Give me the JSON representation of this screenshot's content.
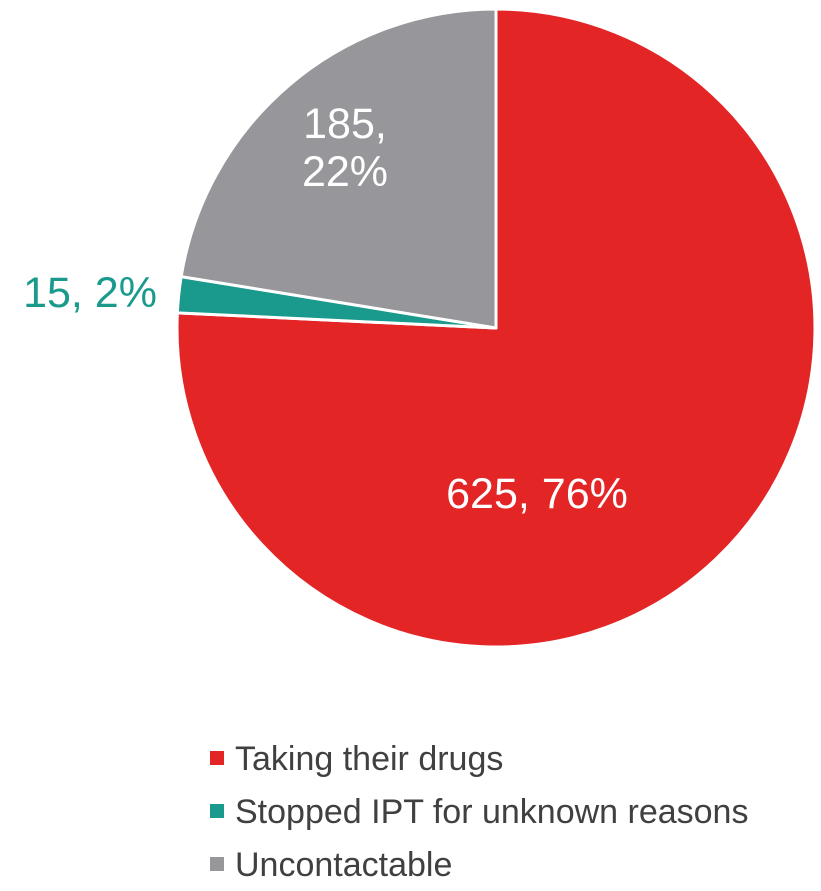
{
  "chart_data": {
    "type": "pie",
    "slices": [
      {
        "name": "Taking their drugs",
        "value": 625,
        "percent": 76,
        "label": "625, 76%",
        "color": "#e32526",
        "label_color": "#ffffff"
      },
      {
        "name": "Stopped IPT for unknown reasons",
        "value": 15,
        "percent": 2,
        "label": "15, 2%",
        "color": "#1a9a8c",
        "label_color": "#1a9a8c"
      },
      {
        "name": "Uncontactable",
        "value": 185,
        "percent": 22,
        "label": "185,\n22%",
        "color": "#96969b",
        "label_color": "#ffffff"
      }
    ],
    "legend": {
      "position": "bottom",
      "entries": [
        "Taking their drugs",
        "Stopped IPT for unknown reasons",
        "Uncontactable"
      ]
    },
    "start_angle": "12 o'clock",
    "direction": "clockwise"
  }
}
